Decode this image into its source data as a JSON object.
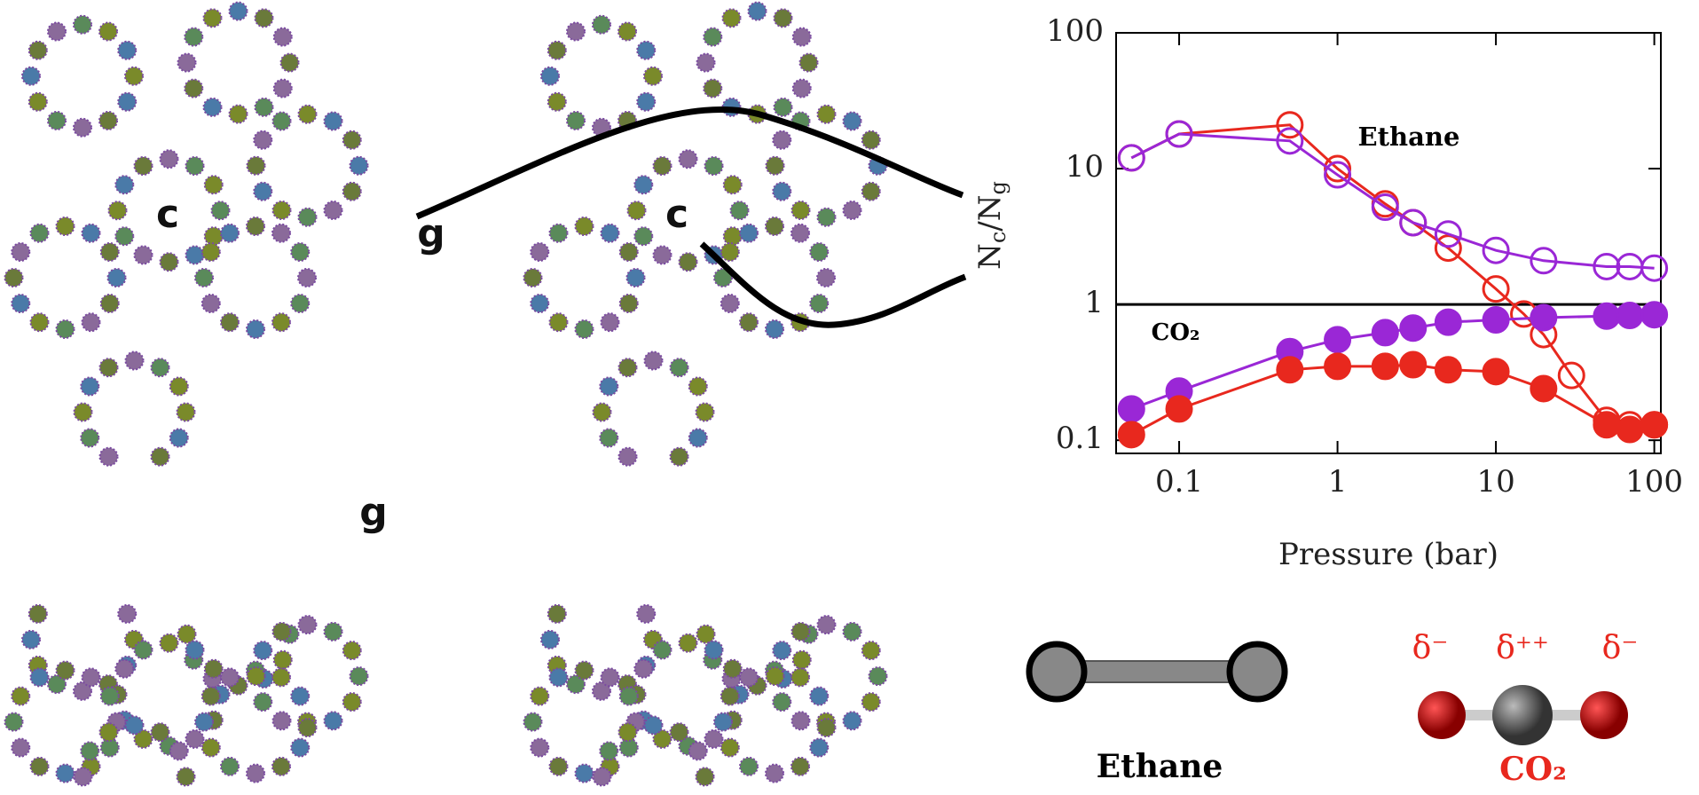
{
  "chart_data": {
    "type": "line",
    "xlabel": "Pressure (bar)",
    "ylabel": "Nc/Ng",
    "xscale": "log",
    "yscale": "log",
    "xlim": [
      0.04,
      110
    ],
    "ylim": [
      0.08,
      100
    ],
    "xticks": [
      0.1,
      1,
      10,
      100
    ],
    "yticks": [
      0.1,
      1,
      10,
      100
    ],
    "hline": 1,
    "annotations": [
      "Ethane",
      "CO₂"
    ],
    "series": [
      {
        "color": "#e8281e",
        "marker": "open",
        "x": [
          0.05,
          0.1,
          0.5,
          1,
          2,
          3,
          5,
          10,
          15,
          20,
          30,
          50,
          70,
          100
        ],
        "values": [
          12,
          18,
          21,
          10,
          5.5,
          4,
          2.6,
          1.3,
          0.85,
          0.6,
          0.3,
          0.14,
          0.13,
          0.13
        ]
      },
      {
        "color": "#9a27d6",
        "marker": "open",
        "x": [
          0.05,
          0.1,
          0.5,
          1,
          2,
          3,
          5,
          10,
          20,
          50,
          70,
          100
        ],
        "values": [
          12,
          18,
          16,
          9,
          5.2,
          4,
          3.3,
          2.5,
          2.1,
          1.9,
          1.9,
          1.85
        ]
      },
      {
        "color": "#9a27d6",
        "marker": "filled",
        "x": [
          0.05,
          0.1,
          0.5,
          1,
          2,
          3,
          5,
          10,
          20,
          50,
          70,
          100
        ],
        "values": [
          0.17,
          0.23,
          0.45,
          0.55,
          0.62,
          0.67,
          0.74,
          0.77,
          0.8,
          0.82,
          0.83,
          0.84
        ]
      },
      {
        "color": "#e8281e",
        "marker": "filled",
        "x": [
          0.05,
          0.1,
          0.5,
          1,
          2,
          3,
          5,
          10,
          20,
          50,
          70,
          100
        ],
        "values": [
          0.11,
          0.17,
          0.33,
          0.35,
          0.35,
          0.36,
          0.33,
          0.32,
          0.24,
          0.13,
          0.12,
          0.13
        ]
      }
    ]
  },
  "structures": {
    "labels": [
      "c",
      "g",
      "c",
      "g"
    ]
  },
  "molecules": {
    "ethane": "Ethane",
    "co2": "CO₂",
    "charges": [
      "δ⁻",
      "δ⁺⁺",
      "δ⁻"
    ]
  }
}
